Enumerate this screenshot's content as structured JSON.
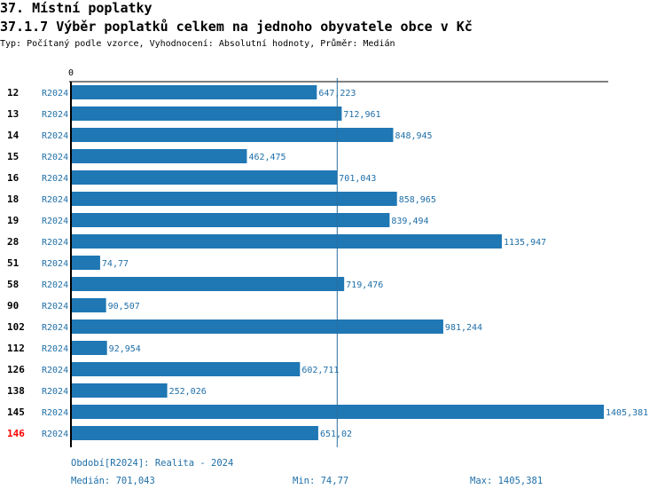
{
  "header": {
    "title": "37. Místní poplatky",
    "subtitle": "37.1.7 Výběr poplatků celkem na jednoho obyvatele obce v  Kč",
    "type_line": "Typ: Počítaný podle vzorce, Vyhodnocení: Absolutní hodnoty, Průměr: Medián"
  },
  "chart_data": {
    "type": "bar",
    "orientation": "horizontal",
    "zero_label": "0",
    "xlim": [
      0,
      1405.381
    ],
    "median": 701.043,
    "bar_color": "#1f77b4",
    "highlight_color": "#ff0000",
    "categories": [
      "12",
      "13",
      "14",
      "15",
      "16",
      "18",
      "19",
      "28",
      "51",
      "58",
      "90",
      "102",
      "112",
      "126",
      "138",
      "145",
      "146"
    ],
    "period": "R2024",
    "values": [
      647.223,
      712.961,
      848.945,
      462.475,
      701.043,
      858.965,
      839.494,
      1135.947,
      74.77,
      719.476,
      90.507,
      981.244,
      92.954,
      602.711,
      252.026,
      1405.381,
      651.02
    ],
    "value_labels": [
      "647,223",
      "712,961",
      "848,945",
      "462,475",
      "701,043",
      "858,965",
      "839,494",
      "1135,947",
      "74,77",
      "719,476",
      "90,507",
      "981,244",
      "92,954",
      "602,711",
      "252,026",
      "1405,381",
      "651,02"
    ],
    "highlighted": [
      "146"
    ]
  },
  "footer": {
    "period_note": "Období[R2024]: Realita - 2024",
    "median": "Medián: 701,043",
    "min": "Min: 74,77",
    "max": "Max: 1405,381"
  }
}
